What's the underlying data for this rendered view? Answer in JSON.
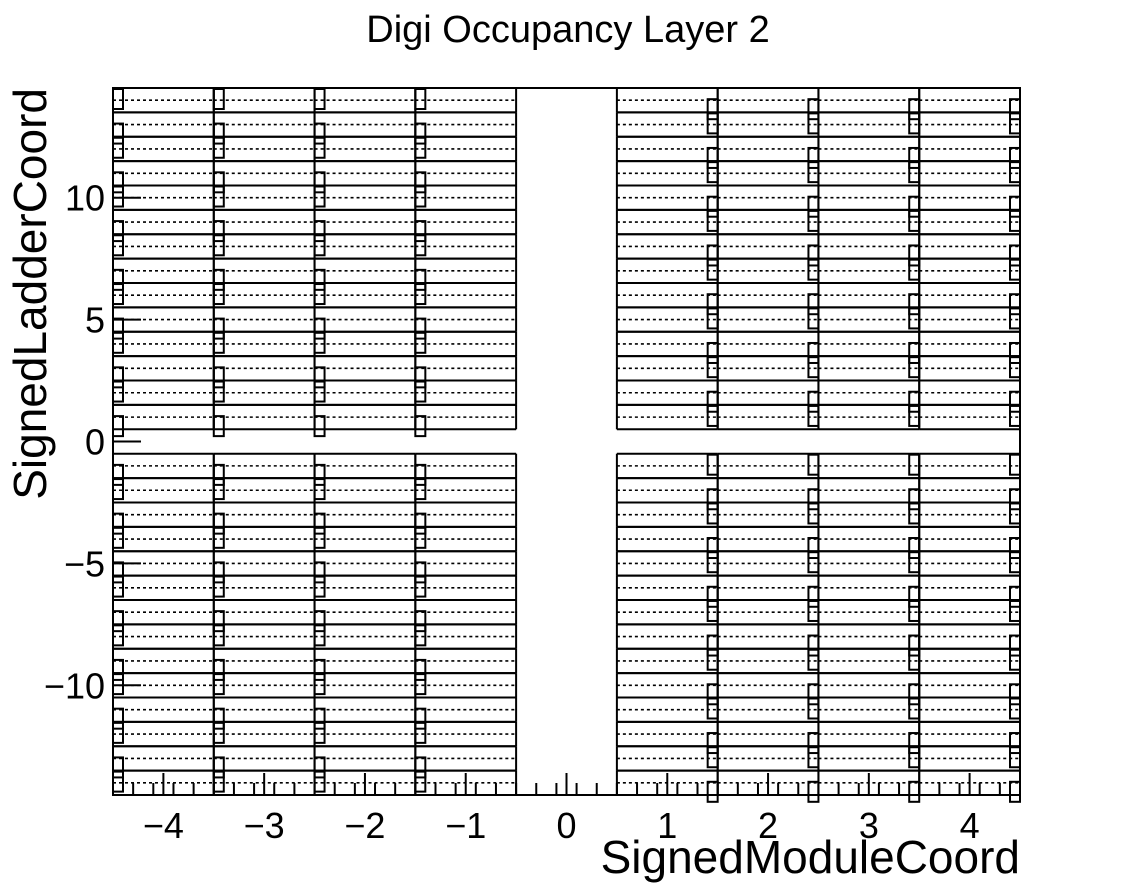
{
  "chart_data": {
    "type": "heatmap",
    "title": "Digi Occupancy Layer 2",
    "xlabel": "SignedModuleCoord",
    "ylabel": "SignedLadderCoord",
    "xlim": [
      -4.5,
      4.5
    ],
    "ylim": [
      -14.5,
      14.5
    ],
    "x_ticks": [
      {
        "value": -4,
        "label": "−4"
      },
      {
        "value": -3,
        "label": "−3"
      },
      {
        "value": -2,
        "label": "−2"
      },
      {
        "value": -1,
        "label": "−1"
      },
      {
        "value": 0,
        "label": "0"
      },
      {
        "value": 1,
        "label": "1"
      },
      {
        "value": 2,
        "label": "2"
      },
      {
        "value": 3,
        "label": "3"
      },
      {
        "value": 4,
        "label": "4"
      }
    ],
    "y_ticks": [
      {
        "value": -10,
        "label": "−10"
      },
      {
        "value": -5,
        "label": "−5"
      },
      {
        "value": 0,
        "label": "0"
      },
      {
        "value": 5,
        "label": "5"
      },
      {
        "value": 10,
        "label": "10"
      }
    ],
    "module_columns": [
      -4,
      -3,
      -2,
      -1,
      1,
      2,
      3,
      4
    ],
    "ladder_rows": [
      -14,
      -13,
      -12,
      -11,
      -10,
      -9,
      -8,
      -7,
      -6,
      -5,
      -4,
      -3,
      -2,
      -1,
      1,
      2,
      3,
      4,
      5,
      6,
      7,
      8,
      9,
      10,
      11,
      12,
      13,
      14
    ],
    "grid": false,
    "legend": "none"
  }
}
